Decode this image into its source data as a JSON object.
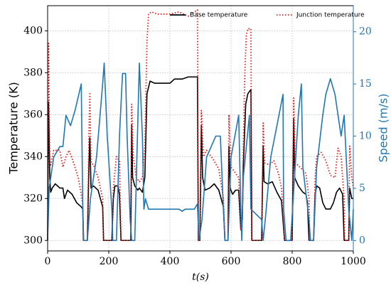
{
  "chart_data": {
    "type": "line",
    "xlabel": "t(s)",
    "ylabel": "Temperature (K)",
    "y2label": "Speed (m/s)",
    "xlim": [
      0,
      1000
    ],
    "xticks": [
      0,
      200,
      400,
      600,
      800,
      1000
    ],
    "ylim": [
      295,
      412
    ],
    "yticks": [
      300,
      320,
      340,
      360,
      380,
      400
    ],
    "y2lim": [
      -1,
      22.5
    ],
    "y2ticks": [
      0,
      5,
      10,
      15,
      20
    ],
    "grid": true,
    "legend": "upper right",
    "series": [
      {
        "name": "Base temperature",
        "color": "#000000",
        "style": "solid",
        "x": [
          0,
          3,
          7,
          10,
          15,
          25,
          40,
          50,
          55,
          65,
          80,
          95,
          110,
          115,
          117,
          130,
          135,
          138,
          142,
          150,
          165,
          180,
          183,
          210,
          215,
          220,
          230,
          235,
          240,
          272,
          275,
          278,
          285,
          295,
          300,
          310,
          318,
          325,
          335,
          350,
          380,
          400,
          415,
          440,
          460,
          490,
          493,
          498,
          503,
          507,
          515,
          530,
          545,
          560,
          575,
          580,
          590,
          593,
          597,
          605,
          615,
          625,
          632,
          637,
          640,
          648,
          655,
          665,
          668,
          700,
          705,
          708,
          720,
          735,
          750,
          765,
          775,
          800,
          805,
          808,
          820,
          835,
          845,
          850,
          855,
          870,
          875,
          880,
          890,
          900,
          910,
          925,
          935,
          945,
          955,
          965,
          970,
          985,
          988,
          995,
          1000
        ],
        "values": [
          300,
          366,
          330,
          323,
          325,
          327,
          325,
          325,
          320,
          324,
          322,
          318,
          316,
          315,
          300,
          300,
          335,
          349,
          325,
          326,
          324,
          316,
          300,
          300,
          320,
          326,
          326,
          322,
          300,
          300,
          355,
          330,
          326,
          324,
          325,
          323,
          330,
          370,
          376,
          375,
          375,
          375,
          377,
          377,
          378,
          378,
          300,
          300,
          355,
          330,
          324,
          325,
          327,
          324,
          316,
          300,
          300,
          345,
          325,
          322,
          324,
          324,
          305,
          310,
          335,
          365,
          370,
          372,
          300,
          300,
          345,
          328,
          327,
          328,
          323,
          319,
          300,
          300,
          358,
          330,
          326,
          323,
          322,
          318,
          300,
          300,
          322,
          326,
          325,
          318,
          315,
          315,
          318,
          323,
          325,
          322,
          300,
          300,
          325,
          320,
          320
        ]
      },
      {
        "name": "Junction temperature",
        "color": "#e41a1c",
        "style": "dotted",
        "x": [
          0,
          3,
          7,
          10,
          20,
          40,
          50,
          60,
          70,
          85,
          100,
          110,
          115,
          117,
          130,
          135,
          138,
          142,
          150,
          165,
          180,
          183,
          210,
          215,
          225,
          235,
          240,
          272,
          275,
          280,
          290,
          300,
          310,
          318,
          325,
          330,
          340,
          360,
          400,
          430,
          460,
          490,
          493,
          498,
          503,
          510,
          520,
          540,
          560,
          575,
          580,
          590,
          593,
          600,
          610,
          625,
          632,
          637,
          640,
          645,
          650,
          655,
          665,
          668,
          700,
          705,
          710,
          725,
          740,
          755,
          765,
          775,
          800,
          805,
          810,
          825,
          845,
          855,
          857,
          870,
          875,
          880,
          895,
          910,
          925,
          940,
          950,
          960,
          970,
          972,
          985,
          988,
          995,
          1000
        ],
        "values": [
          300,
          394,
          338,
          336,
          343,
          343,
          335,
          340,
          343,
          337,
          330,
          322,
          317,
          300,
          300,
          350,
          370,
          337,
          336,
          330,
          320,
          300,
          300,
          325,
          340,
          338,
          300,
          300,
          365,
          340,
          330,
          328,
          330,
          345,
          395,
          408,
          409,
          408,
          408,
          409,
          407,
          410,
          300,
          300,
          362,
          340,
          343,
          339,
          334,
          320,
          300,
          300,
          360,
          335,
          333,
          330,
          305,
          312,
          345,
          380,
          398,
          401,
          401,
          300,
          300,
          356,
          337,
          336,
          338,
          332,
          325,
          300,
          300,
          368,
          337,
          335,
          332,
          320,
          300,
          300,
          330,
          340,
          342,
          338,
          331,
          330,
          344,
          340,
          320,
          300,
          300,
          345,
          330,
          325
        ]
      },
      {
        "color": "#1f77b4",
        "style": "solid",
        "axis": "y2",
        "x": [
          0,
          5,
          20,
          40,
          50,
          60,
          75,
          90,
          110,
          115,
          118,
          130,
          140,
          160,
          180,
          185,
          195,
          210,
          213,
          225,
          235,
          245,
          255,
          260,
          270,
          275,
          285,
          300,
          310,
          315,
          320,
          330,
          360,
          400,
          430,
          440,
          450,
          480,
          490,
          495,
          505,
          520,
          550,
          565,
          575,
          580,
          590,
          600,
          625,
          632,
          635,
          640,
          660,
          665,
          700,
          705,
          712,
          730,
          750,
          770,
          772,
          780,
          795,
          820,
          830,
          835,
          855,
          860,
          870,
          880,
          900,
          910,
          925,
          940,
          960,
          970,
          985,
          995,
          1000
        ],
        "values": [
          0,
          5,
          8,
          9,
          9,
          12,
          11,
          12.5,
          15,
          3,
          0,
          0,
          4,
          8,
          15,
          17,
          10,
          3,
          0,
          0,
          10,
          16,
          16,
          10,
          2,
          0,
          0,
          17,
          10,
          3,
          4,
          3,
          3,
          3,
          3,
          2.8,
          3,
          3,
          3.5,
          0,
          2,
          8,
          10,
          10,
          3,
          0,
          0,
          8,
          12,
          3,
          0,
          6,
          12,
          3,
          2,
          0,
          2,
          8,
          11,
          14,
          3,
          0,
          0,
          12,
          15,
          7,
          2,
          0,
          0,
          7,
          12,
          14,
          15.5,
          14,
          10,
          12,
          3,
          0,
          3
        ]
      }
    ]
  }
}
